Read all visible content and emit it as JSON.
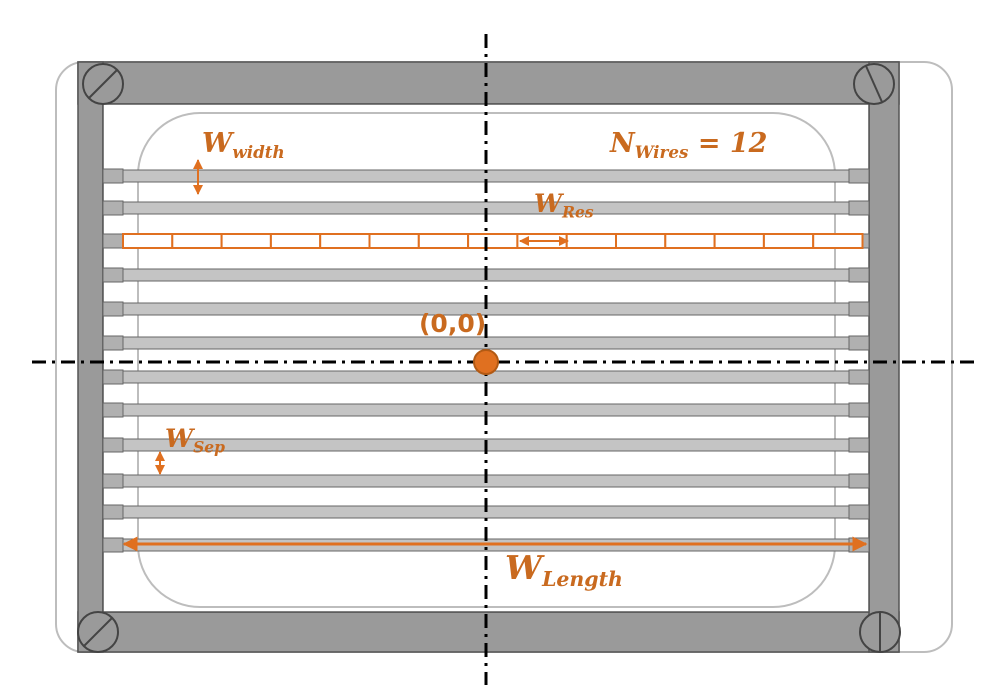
{
  "diagram": {
    "labels": {
      "w_width": {
        "main": "W",
        "sub": "width"
      },
      "n_wires": {
        "main": "N",
        "sub": "Wires",
        "rest": " = 12"
      },
      "w_res": {
        "main": "W",
        "sub": "Res"
      },
      "origin": "(0,0)",
      "w_sep": {
        "main": "W",
        "sub": "Sep"
      },
      "w_length": {
        "main": "W",
        "sub": "Length"
      }
    },
    "colors": {
      "accent": "#e07020",
      "label": "#c96a1f",
      "frame": "#9a9a9a",
      "wire": "#c4c4c4",
      "outline": "#555555"
    }
  }
}
